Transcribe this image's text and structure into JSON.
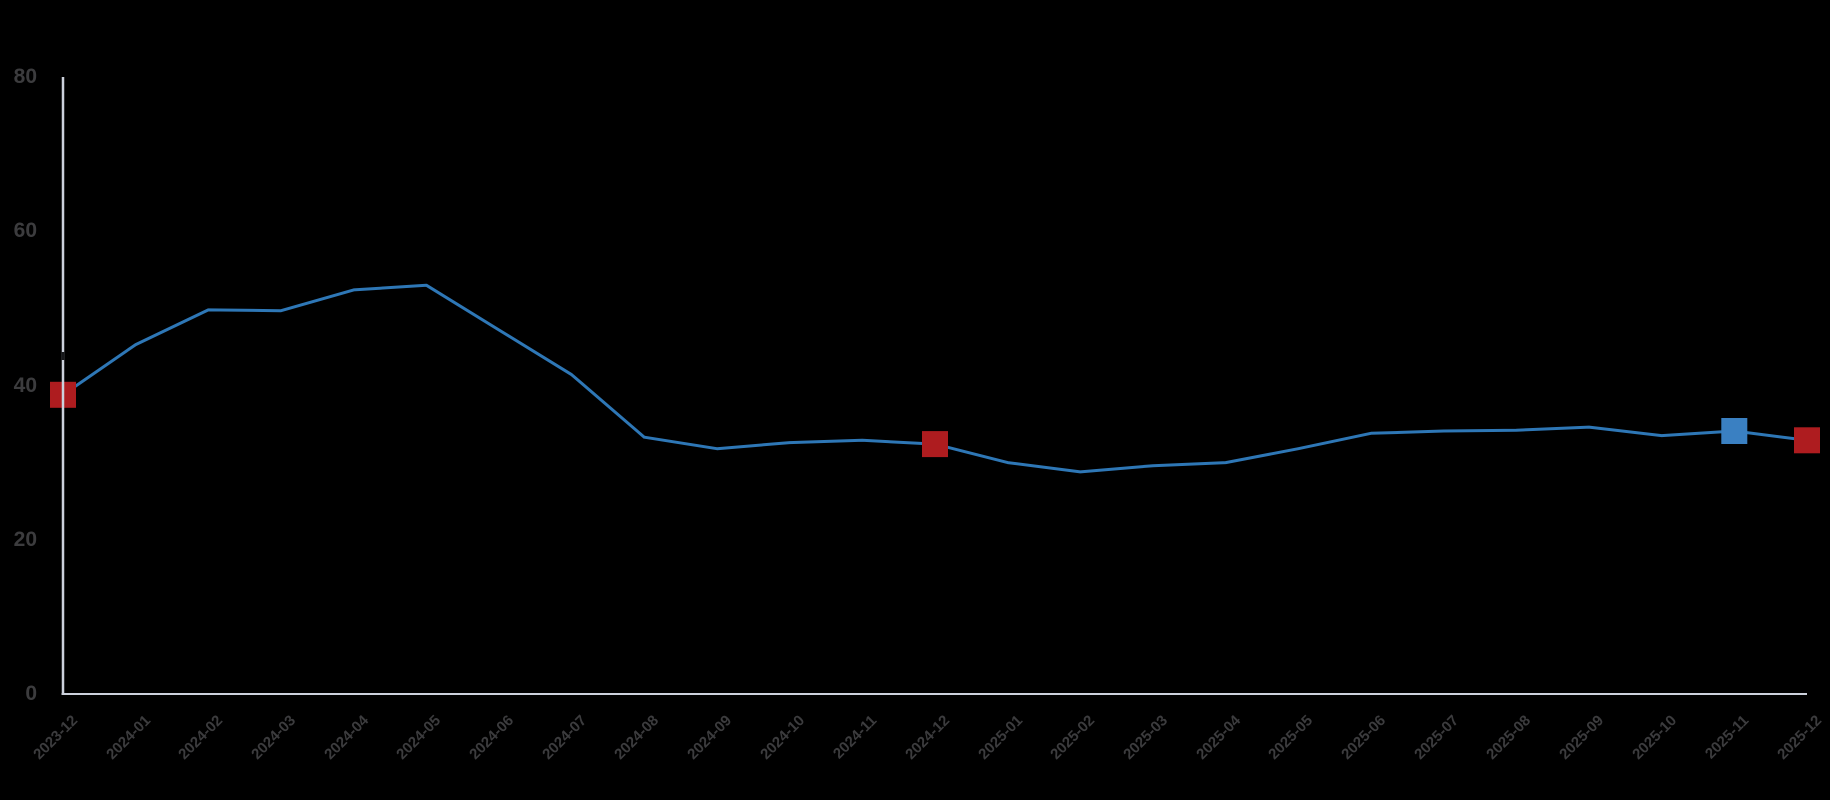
{
  "colors": {
    "background": "#000000",
    "line": "#2e77b6",
    "marker_red": "#ae1c1f",
    "marker_blue": "#3a80c2",
    "axis": "#ccd1dc",
    "tick_text": "#3c3c3e"
  },
  "chart_data": {
    "type": "line",
    "title": "",
    "xlabel": "",
    "ylabel": "",
    "grid": false,
    "legend": null,
    "ylim": [
      0,
      80
    ],
    "yticks": [
      0,
      20,
      40,
      60,
      80
    ],
    "x": [
      "2023-12",
      "2024-01",
      "2024-02",
      "2024-03",
      "2024-04",
      "2024-05",
      "2024-06",
      "2024-07",
      "2024-08",
      "2024-09",
      "2024-10",
      "2024-11",
      "2024-12",
      "2025-01",
      "2025-02",
      "2025-03",
      "2025-04",
      "2025-05",
      "2025-06",
      "2025-07",
      "2025-08",
      "2025-09",
      "2025-10",
      "2025-11",
      "2025-12"
    ],
    "series": [
      {
        "name": "value",
        "values": [
          38.8,
          45.3,
          49.8,
          49.7,
          52.4,
          53.0,
          47.2,
          41.4,
          33.3,
          31.8,
          32.6,
          32.9,
          32.4,
          30.0,
          28.8,
          29.6,
          30.0,
          31.8,
          33.8,
          34.1,
          34.2,
          34.6,
          33.5,
          34.1,
          32.9
        ]
      }
    ],
    "markers": [
      {
        "x": "2023-12",
        "value": 38.8,
        "color": "red"
      },
      {
        "x": "2024-12",
        "value": 32.4,
        "color": "red"
      },
      {
        "x": "2025-11",
        "value": 34.1,
        "color": "blue"
      },
      {
        "x": "2025-12",
        "value": 32.9,
        "color": "red"
      }
    ]
  }
}
